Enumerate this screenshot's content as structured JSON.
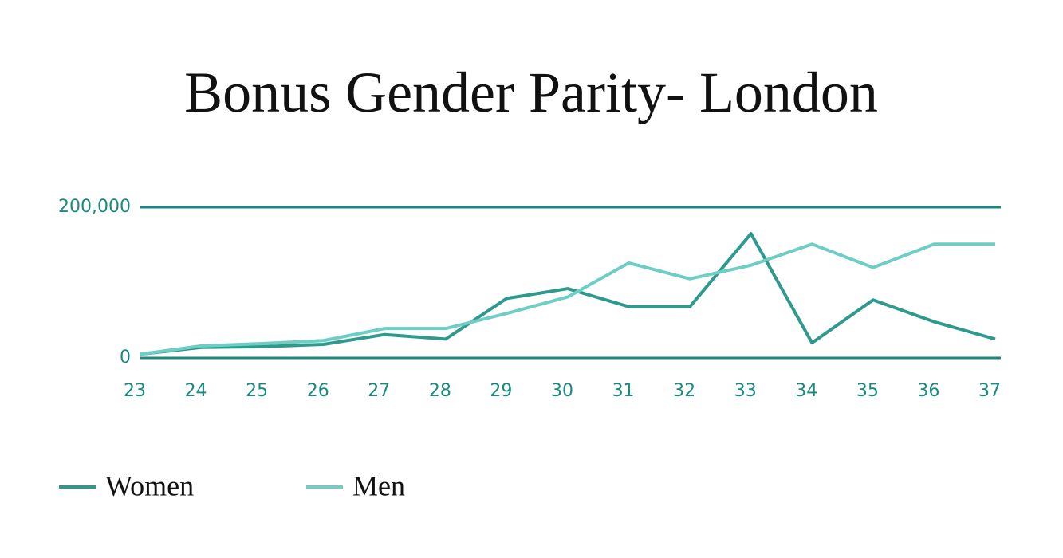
{
  "chart_data": {
    "type": "line",
    "title": "Bonus Gender Parity- London",
    "categories": [
      "23",
      "24",
      "25",
      "26",
      "27",
      "28",
      "29",
      "30",
      "31",
      "32",
      "33",
      "34",
      "35",
      "36",
      "37"
    ],
    "series": [
      {
        "name": "Women",
        "color": "#2e9a8e",
        "values": [
          5000,
          14000,
          15000,
          18000,
          31000,
          25000,
          79000,
          92000,
          68000,
          68000,
          165000,
          20000,
          77000,
          48000,
          25000
        ]
      },
      {
        "name": "Men",
        "color": "#6ecdc4",
        "values": [
          5000,
          16000,
          19000,
          23000,
          39000,
          39000,
          59000,
          81000,
          126000,
          105000,
          123000,
          151000,
          120000,
          151000,
          151000
        ]
      }
    ],
    "ylim": [
      0,
      200000
    ],
    "yticks": [
      0,
      {
        "value": 200000,
        "label": "200,000"
      }
    ],
    "grid": true,
    "grid_color": "#1a8a80",
    "legend": "bottom-left"
  }
}
